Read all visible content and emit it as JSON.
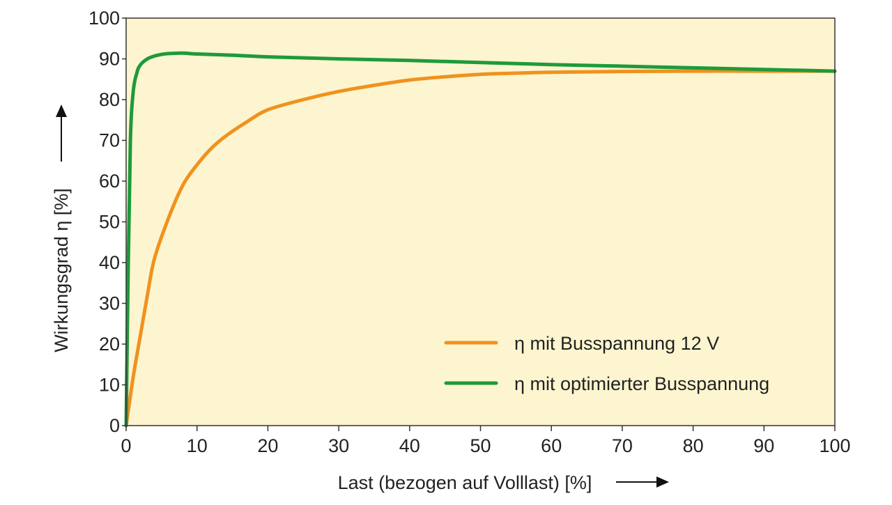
{
  "colors": {
    "plot_background": "#fdf5cf",
    "axis": "#333333",
    "orange": "#f0921e",
    "green": "#1e9a3a"
  },
  "chart_data": {
    "type": "line",
    "title": "",
    "xlabel": "Last (bezogen auf Volllast) [%]",
    "ylabel": "Wirkungsgrad η [%]",
    "xlim": [
      0,
      100
    ],
    "ylim": [
      0,
      100
    ],
    "xticks": [
      0,
      10,
      20,
      30,
      40,
      50,
      60,
      70,
      80,
      90,
      100
    ],
    "yticks": [
      0,
      10,
      20,
      30,
      40,
      50,
      60,
      70,
      80,
      90,
      100
    ],
    "grid": false,
    "legend_position": "bottom-right",
    "series": [
      {
        "name": "η mit Busspannung 12 V",
        "color": "#f0921e",
        "x": [
          0,
          1,
          2,
          3,
          4,
          6,
          8,
          10,
          12,
          14,
          17,
          20,
          25,
          30,
          35,
          40,
          45,
          50,
          55,
          60,
          70,
          80,
          90,
          100
        ],
        "y": [
          0,
          12,
          22,
          32,
          41,
          51,
          59,
          64,
          68,
          71,
          74.5,
          77.5,
          80,
          82,
          83.5,
          84.8,
          85.6,
          86.2,
          86.5,
          86.7,
          86.9,
          87,
          87,
          87
        ]
      },
      {
        "name": "η mit optimierter Busspannung",
        "color": "#1e9a3a",
        "x": [
          0,
          0.3,
          0.6,
          1,
          1.5,
          2,
          3,
          4,
          5,
          6,
          8,
          10,
          15,
          20,
          30,
          40,
          50,
          60,
          70,
          80,
          90,
          100
        ],
        "y": [
          0,
          40,
          70,
          82,
          86.5,
          88.5,
          90,
          90.7,
          91.1,
          91.3,
          91.4,
          91.2,
          90.9,
          90.5,
          90,
          89.6,
          89.1,
          88.6,
          88.2,
          87.8,
          87.4,
          87
        ]
      }
    ]
  }
}
